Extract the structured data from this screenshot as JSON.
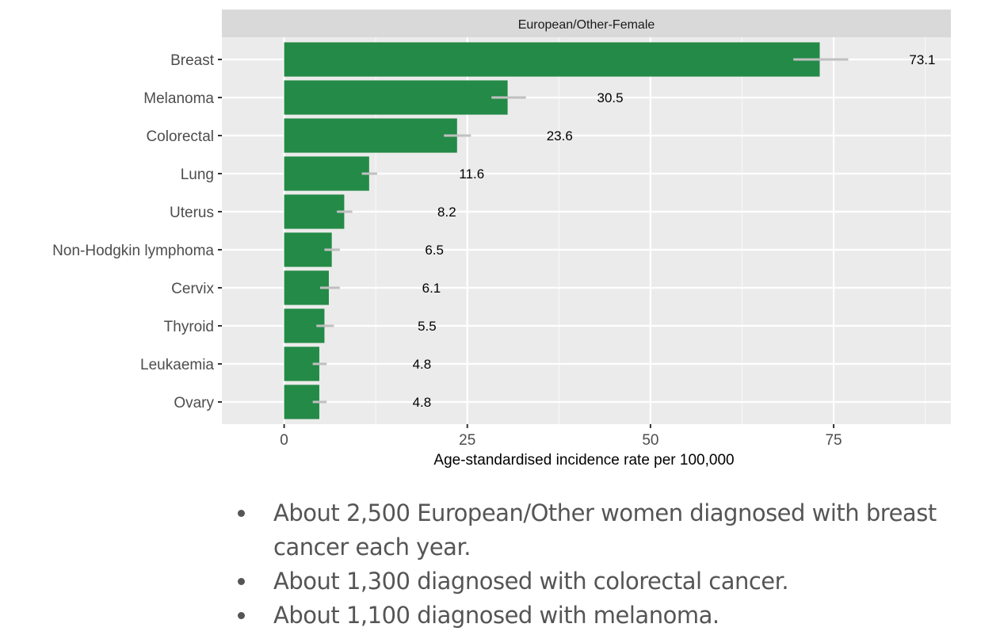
{
  "chart_data": {
    "type": "bar",
    "orientation": "horizontal",
    "facet_title": "European/Other-Female",
    "xlabel": "Age-standardised incidence rate per 100,000",
    "ylabel": "",
    "xlim": [
      -8.5,
      91
    ],
    "x_ticks": [
      0,
      25,
      50,
      75
    ],
    "x_tick_labels": [
      "0",
      "25",
      "50",
      "75"
    ],
    "x_minor_ticks": [
      12.5,
      37.5,
      62.5,
      87.5
    ],
    "grid": true,
    "legend": "none",
    "bar_color": "#248A47",
    "errorbar_color": "#C0C0C0",
    "categories": [
      "Breast",
      "Melanoma",
      "Colorectal",
      "Lung",
      "Uterus",
      "Non-Hodgkin lymphoma",
      "Cervix",
      "Thyroid",
      "Leukaemia",
      "Ovary"
    ],
    "values": [
      73.1,
      30.5,
      23.6,
      11.6,
      8.2,
      6.5,
      6.1,
      5.5,
      4.8,
      4.8
    ],
    "value_labels": [
      "73.1",
      "30.5",
      "23.6",
      "11.6",
      "8.2",
      "6.5",
      "6.1",
      "5.5",
      "4.8",
      "4.8"
    ],
    "ci_low": [
      69.5,
      28.3,
      21.8,
      10.6,
      7.2,
      5.5,
      4.9,
      4.4,
      3.9,
      3.9
    ],
    "ci_high": [
      77.0,
      33.0,
      25.5,
      12.7,
      9.3,
      7.6,
      7.6,
      6.8,
      5.8,
      5.8
    ],
    "label_offset": 14
  },
  "notes": [
    "About 2,500 European/Other women diagnosed with breast cancer each year.",
    "About 1,300 diagnosed with colorectal cancer.",
    "About 1,100 diagnosed with melanoma."
  ]
}
